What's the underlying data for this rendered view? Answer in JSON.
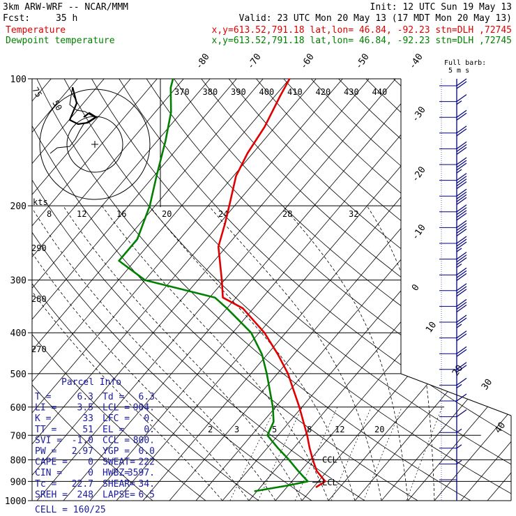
{
  "header": {
    "model": "3km ARW-WRF -- NCAR/MMM",
    "init": "Init: 12 UTC Sun 19 May 13",
    "fcst_label": "Fcst:",
    "fcst_value": "35 h",
    "valid": "Valid: 23 UTC Mon 20 May 13 (17 MDT Mon 20 May 13)",
    "temp_label": "Temperature",
    "dew_label": "Dewpoint temperature",
    "point_info": "x,y=613.52,791.18   lat,lon= 46.84, -92.23   stn=DLH ,72745"
  },
  "colors": {
    "temperature": "#e00000",
    "dewpoint": "#008000",
    "parcel_info": "#1a1aa0",
    "wind": "#00007a"
  },
  "chart_data": {
    "type": "line",
    "chart_kind": "skew-T log-p diagram",
    "y_axis": {
      "label": "",
      "scale": "log",
      "units": "hPa",
      "range": [
        1000,
        100
      ],
      "ticks": [
        100,
        200,
        300,
        400,
        500,
        600,
        700,
        800,
        900,
        1000
      ]
    },
    "isotherm_labels": [
      -80,
      -70,
      -60,
      -50,
      -40,
      -30,
      -20,
      -10,
      0,
      10,
      20,
      30,
      40
    ],
    "theta_e_labels": [
      370,
      380,
      390,
      400,
      410,
      420,
      430,
      440
    ],
    "theta_labels": [
      290,
      280,
      270
    ],
    "mixing_ratio_labels": [
      2,
      3,
      5,
      8,
      12,
      20
    ],
    "lcl_markers": [
      {
        "label": "LCL",
        "pressure": 905
      },
      {
        "label": "CCL",
        "pressure": 800
      }
    ],
    "series": [
      {
        "name": "Temperature",
        "points": [
          [
            930,
            5.5
          ],
          [
            900,
            6.3
          ],
          [
            850,
            3.0
          ],
          [
            800,
            0.5
          ],
          [
            750,
            -2.0
          ],
          [
            700,
            -4.5
          ],
          [
            600,
            -10.5
          ],
          [
            500,
            -18.0
          ],
          [
            450,
            -23.0
          ],
          [
            400,
            -29.0
          ],
          [
            350,
            -37.0
          ],
          [
            330,
            -42.5
          ],
          [
            300,
            -45.5
          ],
          [
            250,
            -51.5
          ],
          [
            220,
            -54.0
          ],
          [
            200,
            -56.0
          ],
          [
            170,
            -59.5
          ],
          [
            150,
            -61.0
          ],
          [
            130,
            -62.0
          ],
          [
            110,
            -64.0
          ],
          [
            100,
            -65.0
          ]
        ]
      },
      {
        "name": "Dewpoint temperature",
        "points": [
          [
            950,
            -5.5
          ],
          [
            920,
            0.0
          ],
          [
            900,
            3.0
          ],
          [
            850,
            -0.5
          ],
          [
            800,
            -4.0
          ],
          [
            750,
            -8.0
          ],
          [
            700,
            -12.0
          ],
          [
            650,
            -13.0
          ],
          [
            600,
            -15.5
          ],
          [
            500,
            -22.0
          ],
          [
            450,
            -26.0
          ],
          [
            400,
            -31.5
          ],
          [
            350,
            -40.0
          ],
          [
            330,
            -44.0
          ],
          [
            300,
            -60.0
          ],
          [
            270,
            -68.0
          ],
          [
            240,
            -68.0
          ],
          [
            200,
            -71.0
          ],
          [
            170,
            -74.5
          ],
          [
            140,
            -78.5
          ],
          [
            120,
            -82.0
          ],
          [
            105,
            -86.0
          ],
          [
            100,
            -87.0
          ]
        ]
      }
    ],
    "wind_profile": {
      "speeds_m_s": [
        2,
        3,
        3,
        4,
        5,
        6,
        8,
        10,
        10,
        12,
        13,
        15,
        15,
        17,
        18,
        18,
        20,
        20,
        20,
        20,
        18,
        15,
        12,
        10,
        8,
        10
      ],
      "legend": "Full barb: 5 m s-1"
    },
    "hodograph": {
      "range_labels": [
        "75",
        "50",
        "kts"
      ],
      "ring_labels": [
        "8",
        "12",
        "16",
        "20",
        "24",
        "28",
        "32"
      ]
    }
  },
  "parcel_info": {
    "title": "Parcel Info",
    "rows": [
      [
        "T  =",
        "6.3",
        "Td =",
        "6.3"
      ],
      [
        "LI =",
        "3.5",
        "LCL =",
        "904."
      ],
      [
        "K  =",
        "33",
        "LFC =",
        "0."
      ],
      [
        "TT =",
        "51",
        "EL =",
        "0."
      ],
      [
        "SVI =",
        "-1.0",
        "CCL =",
        "800."
      ],
      [
        "PW =",
        "2.97",
        "YGP =",
        "0.0"
      ],
      [
        "CAPE =",
        "0",
        "SWEAT=",
        "222"
      ],
      [
        "CIN =",
        "0",
        "HWBZ=",
        "3597."
      ],
      [
        "Tc =",
        "22.7",
        "SHEAR=",
        "34."
      ],
      [
        "SREH =",
        "248",
        "LAPSE=",
        "6.5"
      ]
    ],
    "cell": "CELL = 160/25"
  },
  "wind_legend": {
    "line1": "Full barb:",
    "line2": "5 m s"
  }
}
